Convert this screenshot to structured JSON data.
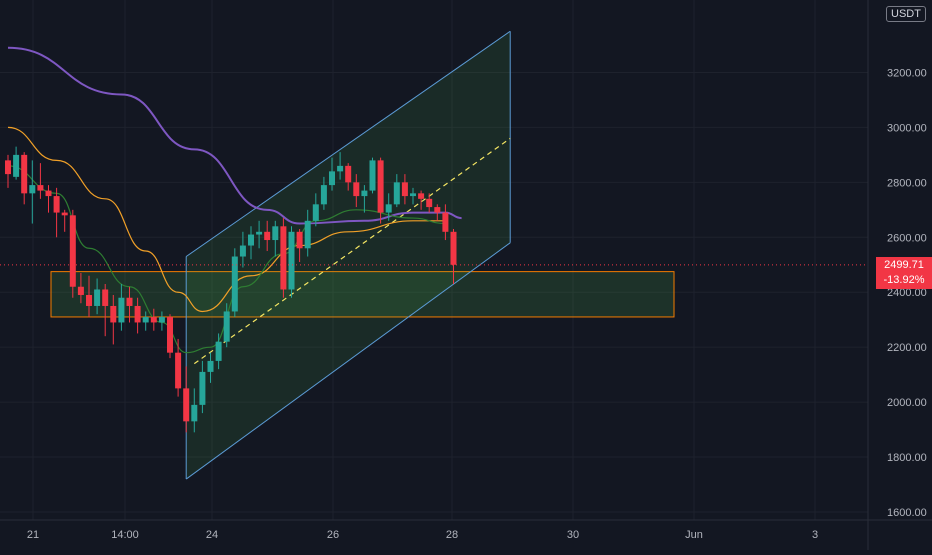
{
  "chart_data": {
    "type": "candlestick",
    "currency": "USDT",
    "y_axis": {
      "ticks": [
        "3200.00",
        "3000.00",
        "2800.00",
        "2600.00",
        "2400.00",
        "2200.00",
        "2000.00",
        "1800.00",
        "1600.00"
      ],
      "tick_values": [
        3200,
        3000,
        2800,
        2600,
        2400,
        2200,
        2000,
        1800,
        1600
      ],
      "range": [
        1565,
        3380
      ]
    },
    "x_axis": {
      "ticks": [
        "21",
        "14:00",
        "24",
        "26",
        "28",
        "30",
        "Jun",
        "3"
      ],
      "range": [
        0,
        932
      ]
    },
    "last_price": {
      "value": 2499.71,
      "label": "2499.71",
      "change_label": "-13.92%"
    },
    "colors": {
      "up": "#26a69a",
      "down": "#f23645",
      "channel": "#5b9bd5",
      "zone": "#f57c00",
      "ma_fast": "#2e7d32",
      "ma_mid": "#f0a028",
      "ma_slow": "#7e57c2",
      "midline": "#f5e663"
    },
    "candles": [
      [
        0,
        2880,
        2900,
        2780,
        2830
      ],
      [
        1,
        2820,
        2930,
        2810,
        2900
      ],
      [
        2,
        2900,
        2910,
        2720,
        2760
      ],
      [
        3,
        2760,
        2880,
        2650,
        2790
      ],
      [
        4,
        2790,
        2870,
        2740,
        2770
      ],
      [
        5,
        2770,
        2790,
        2690,
        2750
      ],
      [
        6,
        2750,
        2780,
        2600,
        2690
      ],
      [
        7,
        2690,
        2700,
        2620,
        2680
      ],
      [
        8,
        2680,
        2700,
        2380,
        2420
      ],
      [
        9,
        2420,
        2470,
        2360,
        2390
      ],
      [
        10,
        2390,
        2460,
        2310,
        2350
      ],
      [
        11,
        2350,
        2450,
        2320,
        2410
      ],
      [
        12,
        2410,
        2430,
        2240,
        2350
      ],
      [
        13,
        2350,
        2390,
        2210,
        2290
      ],
      [
        14,
        2290,
        2430,
        2260,
        2380
      ],
      [
        15,
        2380,
        2420,
        2290,
        2350
      ],
      [
        16,
        2350,
        2380,
        2250,
        2290
      ],
      [
        17,
        2290,
        2330,
        2260,
        2310
      ],
      [
        18,
        2310,
        2340,
        2260,
        2290
      ],
      [
        19,
        2290,
        2330,
        2260,
        2310
      ],
      [
        20,
        2310,
        2320,
        2160,
        2180
      ],
      [
        21,
        2180,
        2230,
        2020,
        2050
      ],
      [
        22,
        2050,
        2130,
        1890,
        1930
      ],
      [
        23,
        1930,
        2050,
        1890,
        1990
      ],
      [
        24,
        1990,
        2150,
        1960,
        2110
      ],
      [
        25,
        2110,
        2180,
        2070,
        2150
      ],
      [
        26,
        2150,
        2250,
        2120,
        2220
      ],
      [
        27,
        2220,
        2360,
        2200,
        2330
      ],
      [
        28,
        2330,
        2560,
        2310,
        2530
      ],
      [
        29,
        2530,
        2620,
        2490,
        2570
      ],
      [
        30,
        2570,
        2640,
        2520,
        2610
      ],
      [
        31,
        2610,
        2660,
        2560,
        2620
      ],
      [
        32,
        2620,
        2660,
        2550,
        2590
      ],
      [
        33,
        2590,
        2660,
        2530,
        2640
      ],
      [
        34,
        2640,
        2670,
        2380,
        2410
      ],
      [
        35,
        2410,
        2640,
        2380,
        2620
      ],
      [
        36,
        2620,
        2630,
        2510,
        2560
      ],
      [
        37,
        2560,
        2700,
        2530,
        2660
      ],
      [
        38,
        2660,
        2760,
        2640,
        2720
      ],
      [
        39,
        2720,
        2820,
        2700,
        2790
      ],
      [
        40,
        2790,
        2890,
        2770,
        2840
      ],
      [
        41,
        2840,
        2910,
        2810,
        2860
      ],
      [
        42,
        2860,
        2870,
        2770,
        2800
      ],
      [
        43,
        2800,
        2830,
        2710,
        2750
      ],
      [
        44,
        2750,
        2790,
        2690,
        2770
      ],
      [
        45,
        2770,
        2890,
        2760,
        2880
      ],
      [
        46,
        2880,
        2890,
        2650,
        2690
      ],
      [
        47,
        2690,
        2760,
        2660,
        2720
      ],
      [
        48,
        2720,
        2830,
        2710,
        2800
      ],
      [
        49,
        2800,
        2830,
        2720,
        2750
      ],
      [
        50,
        2750,
        2780,
        2720,
        2760
      ],
      [
        51,
        2760,
        2770,
        2700,
        2740
      ],
      [
        52,
        2740,
        2760,
        2690,
        2710
      ],
      [
        53,
        2710,
        2720,
        2660,
        2690
      ],
      [
        54,
        2690,
        2720,
        2590,
        2620
      ],
      [
        55,
        2620,
        2630,
        2430,
        2500
      ]
    ],
    "moving_averages": [
      {
        "name": "ma_slow",
        "values": [
          [
            0,
            3290
          ],
          [
            14,
            3120
          ],
          [
            23,
            2920
          ],
          [
            32,
            2700
          ],
          [
            36,
            2650
          ],
          [
            44,
            2660
          ],
          [
            50,
            2690
          ],
          [
            54,
            2690
          ],
          [
            56,
            2670
          ]
        ]
      },
      {
        "name": "ma_mid",
        "values": [
          [
            0,
            3000
          ],
          [
            6,
            2880
          ],
          [
            12,
            2740
          ],
          [
            17,
            2550
          ],
          [
            21,
            2400
          ],
          [
            24,
            2330
          ],
          [
            30,
            2460
          ],
          [
            36,
            2570
          ],
          [
            42,
            2620
          ],
          [
            50,
            2660
          ],
          [
            54,
            2660
          ]
        ]
      },
      {
        "name": "ma_fast",
        "values": [
          [
            0,
            2860
          ],
          [
            6,
            2760
          ],
          [
            10,
            2560
          ],
          [
            15,
            2420
          ],
          [
            19,
            2290
          ],
          [
            22,
            2180
          ],
          [
            25,
            2200
          ],
          [
            29,
            2420
          ],
          [
            34,
            2540
          ],
          [
            38,
            2660
          ],
          [
            43,
            2700
          ],
          [
            50,
            2670
          ],
          [
            54,
            2650
          ]
        ]
      }
    ],
    "channel": {
      "lower": [
        [
          22,
          1720
        ],
        [
          62,
          2580
        ]
      ],
      "upper": [
        [
          22,
          2530
        ],
        [
          62,
          3350
        ]
      ],
      "mid": [
        [
          23,
          2140
        ],
        [
          62,
          2960
        ]
      ]
    },
    "zone": {
      "low": 2310,
      "high": 2475,
      "x_start": 3,
      "x_end": 84
    },
    "candle_spacing": 8.1,
    "first_candle_x": 8
  }
}
